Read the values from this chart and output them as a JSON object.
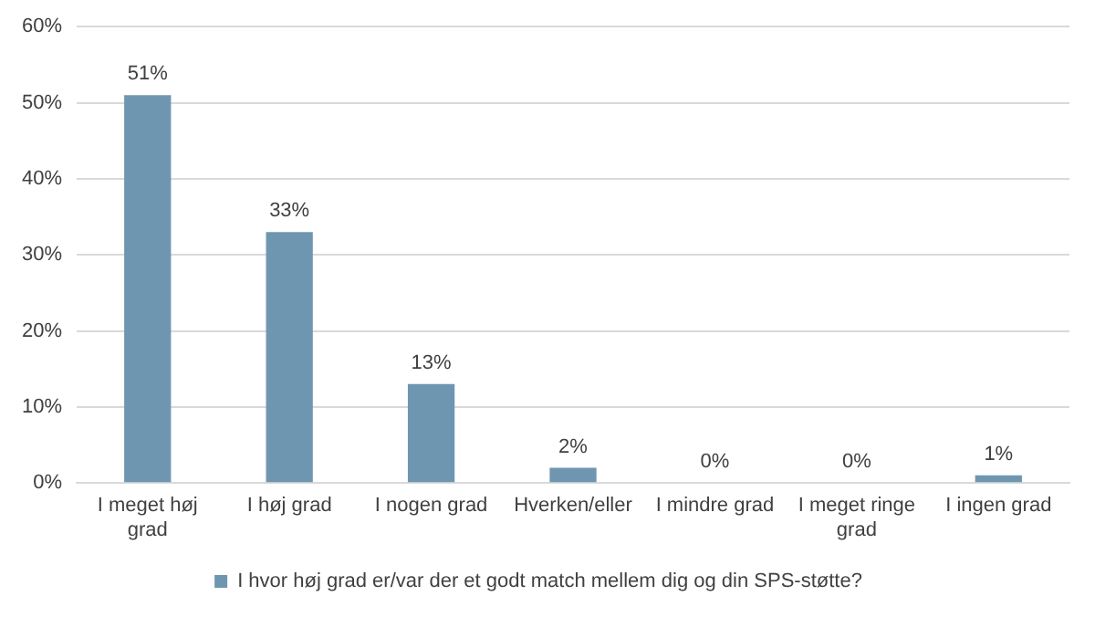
{
  "chart_data": {
    "type": "bar",
    "categories": [
      "I meget høj grad",
      "I høj grad",
      "I nogen grad",
      "Hverken/eller",
      "I mindre grad",
      "I meget ringe grad",
      "I ingen grad"
    ],
    "series": [
      {
        "name": "I hvor høj grad er/var der et godt match mellem dig og din SPS-støtte?",
        "color": "#6f96b1",
        "values": [
          51,
          33,
          13,
          2,
          0,
          0,
          1
        ],
        "value_labels": [
          "51%",
          "33%",
          "13%",
          "2%",
          "0%",
          "0%",
          "1%"
        ]
      }
    ],
    "ylim": [
      0,
      60
    ],
    "yticks": [
      {
        "value": 0,
        "label": "0%"
      },
      {
        "value": 10,
        "label": "10%"
      },
      {
        "value": 20,
        "label": "20%"
      },
      {
        "value": 30,
        "label": "30%"
      },
      {
        "value": 40,
        "label": "40%"
      },
      {
        "value": 50,
        "label": "50%"
      },
      {
        "value": 60,
        "label": "60%"
      }
    ],
    "grid": "y",
    "legend": "bottom"
  }
}
